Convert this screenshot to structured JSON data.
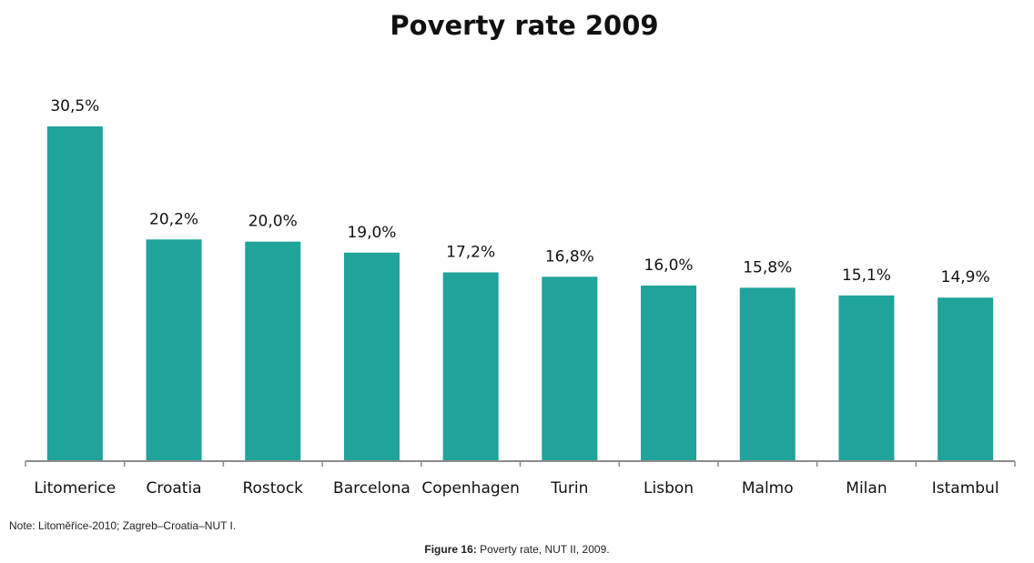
{
  "chart_data": {
    "type": "bar",
    "title": "Poverty rate 2009",
    "categories": [
      "Litomerice",
      "Croatia",
      "Rostock",
      "Barcelona",
      "Copenhagen",
      "Turin",
      "Lisbon",
      "Malmo",
      "Milan",
      "Istambul"
    ],
    "values": [
      30.5,
      20.2,
      20.0,
      19.0,
      17.2,
      16.8,
      16.0,
      15.8,
      15.1,
      14.9
    ],
    "value_labels": [
      "30,5%",
      "20,2%",
      "20,0%",
      "19,0%",
      "17,2%",
      "16,8%",
      "16,0%",
      "15,8%",
      "15,1%",
      "14,9%"
    ],
    "xlabel": "",
    "ylabel": "",
    "ylim": [
      0,
      31
    ],
    "grid": false,
    "legend": "none",
    "bar_color": "#1fa39a"
  },
  "note": "Note: Litoměřice-2010; Zagreb–Croatia–NUT I.",
  "caption": {
    "label": "Figure 16:",
    "text": " Poverty rate, NUT II, 2009."
  }
}
